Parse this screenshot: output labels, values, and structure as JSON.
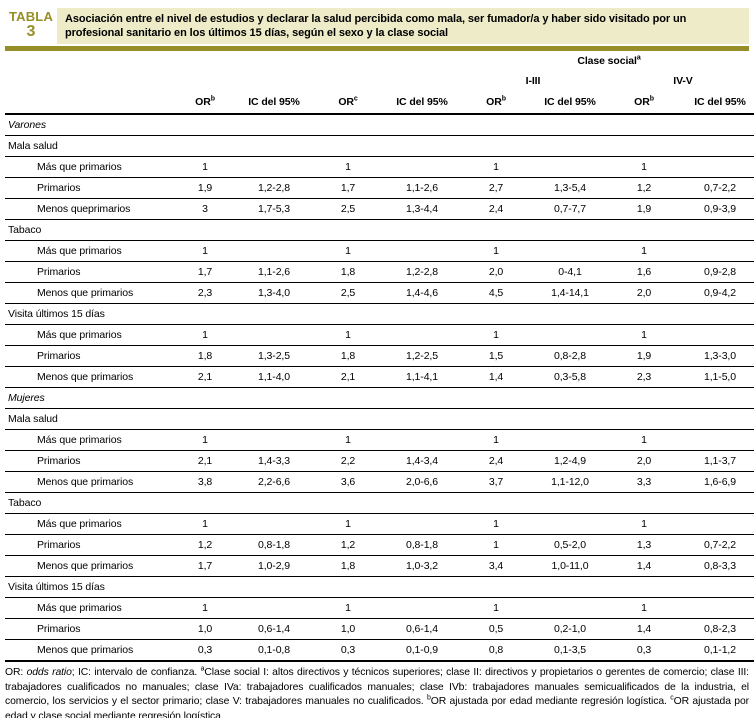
{
  "colors": {
    "olive": "#968f28",
    "cream": "#edebc8"
  },
  "header": {
    "badge_line1": "TABLA",
    "badge_line2": "3",
    "title": "Asociación entre el nivel de estudios y declarar la salud percibida como mala, ser fumador/a y haber sido visitado por un profesional sanitario en los últimos 15 días, según el sexo y la clase social"
  },
  "table": {
    "group_header": {
      "label": "Clase social",
      "sup": "a"
    },
    "subgroup_headers": [
      {
        "label": "I-III"
      },
      {
        "label": "IV-V"
      }
    ],
    "columns": [
      {
        "label": "OR",
        "sup": "b"
      },
      {
        "label": "IC del 95%",
        "sup": ""
      },
      {
        "label": "OR",
        "sup": "c"
      },
      {
        "label": "IC del 95%",
        "sup": ""
      },
      {
        "label": "OR",
        "sup": "b"
      },
      {
        "label": "IC del 95%",
        "sup": ""
      },
      {
        "label": "OR",
        "sup": "b"
      },
      {
        "label": "IC del 95%",
        "sup": ""
      }
    ],
    "rows": [
      {
        "type": "sex",
        "label": "Varones"
      },
      {
        "type": "section",
        "label": "Mala salud"
      },
      {
        "type": "data",
        "label": "Más que primarios",
        "values": [
          "1",
          "",
          "1",
          "",
          "1",
          "",
          "1",
          ""
        ]
      },
      {
        "type": "data",
        "label": "Primarios",
        "values": [
          "1,9",
          "1,2-2,8",
          "1,7",
          "1,1-2,6",
          "2,7",
          "1,3-5,4",
          "1,2",
          "0,7-2,2"
        ]
      },
      {
        "type": "data",
        "label": "Menos queprimarios",
        "values": [
          "3",
          "1,7-5,3",
          "2,5",
          "1,3-4,4",
          "2,4",
          "0,7-7,7",
          "1,9",
          "0,9-3,9"
        ]
      },
      {
        "type": "section",
        "label": "Tabaco"
      },
      {
        "type": "data",
        "label": "Más que primarios",
        "values": [
          "1",
          "",
          "1",
          "",
          "1",
          "",
          "1",
          ""
        ]
      },
      {
        "type": "data",
        "label": "Primarios",
        "values": [
          "1,7",
          "1,1-2,6",
          "1,8",
          "1,2-2,8",
          "2,0",
          "0-4,1",
          "1,6",
          "0,9-2,8"
        ]
      },
      {
        "type": "data",
        "label": "Menos que primarios",
        "values": [
          "2,3",
          "1,3-4,0",
          "2,5",
          "1,4-4,6",
          "4,5",
          "1,4-14,1",
          "2,0",
          "0,9-4,2"
        ]
      },
      {
        "type": "section",
        "label": "Visita últimos 15 días"
      },
      {
        "type": "data",
        "label": "Más que primarios",
        "values": [
          "1",
          "",
          "1",
          "",
          "1",
          "",
          "1",
          ""
        ]
      },
      {
        "type": "data",
        "label": "Primarios",
        "values": [
          "1,8",
          "1,3-2,5",
          "1,8",
          "1,2-2,5",
          "1,5",
          "0,8-2,8",
          "1,9",
          "1,3-3,0"
        ]
      },
      {
        "type": "data",
        "label": "Menos que primarios",
        "values": [
          "2,1",
          "1,1-4,0",
          "2,1",
          "1,1-4,1",
          "1,4",
          "0,3-5,8",
          "2,3",
          "1,1-5,0"
        ]
      },
      {
        "type": "sex",
        "label": "Mujeres"
      },
      {
        "type": "section",
        "label": "Mala salud"
      },
      {
        "type": "data",
        "label": "Más que primarios",
        "values": [
          "1",
          "",
          "1",
          "",
          "1",
          "",
          "1",
          ""
        ]
      },
      {
        "type": "data",
        "label": "Primarios",
        "values": [
          "2,1",
          "1,4-3,3",
          "2,2",
          "1,4-3,4",
          "2,4",
          "1,2-4,9",
          "2,0",
          "1,1-3,7"
        ]
      },
      {
        "type": "data",
        "label": "Menos que primarios",
        "values": [
          "3,8",
          "2,2-6,6",
          "3,6",
          "2,0-6,6",
          "3,7",
          "1,1-12,0",
          "3,3",
          "1,6-6,9"
        ]
      },
      {
        "type": "section",
        "label": "Tabaco"
      },
      {
        "type": "data",
        "label": "Más que primarios",
        "values": [
          "1",
          "",
          "1",
          "",
          "1",
          "",
          "1",
          ""
        ]
      },
      {
        "type": "data",
        "label": "Primarios",
        "values": [
          "1,2",
          "0,8-1,8",
          "1,2",
          "0,8-1,8",
          "1",
          "0,5-2,0",
          "1,3",
          "0,7-2,2"
        ]
      },
      {
        "type": "data",
        "label": "Menos que primarios",
        "values": [
          "1,7",
          "1,0-2,9",
          "1,8",
          "1,0-3,2",
          "3,4",
          "1,0-11,0",
          "1,4",
          "0,8-3,3"
        ]
      },
      {
        "type": "section",
        "label": "Visita últimos 15 días"
      },
      {
        "type": "data",
        "label": "Más que primarios",
        "values": [
          "1",
          "",
          "1",
          "",
          "1",
          "",
          "1",
          ""
        ]
      },
      {
        "type": "data",
        "label": "Primarios",
        "values": [
          "1,0",
          "0,6-1,4",
          "1,0",
          "0,6-1,4",
          "0,5",
          "0,2-1,0",
          "1,4",
          "0,8-2,3"
        ]
      },
      {
        "type": "data",
        "label": "Menos que primarios",
        "values": [
          "0,3",
          "0,1-0,8",
          "0,3",
          "0,1-0,9",
          "0,8",
          "0,1-3,5",
          "0,3",
          "0,1-1,2"
        ]
      }
    ]
  },
  "footnote": {
    "segments": [
      {
        "text": "OR: "
      },
      {
        "text": "odds ratio",
        "style": "italic"
      },
      {
        "text": "; IC: intervalo de confianza. "
      },
      {
        "text": "a",
        "style": "sup"
      },
      {
        "text": "Clase social I: altos directivos y técnicos superiores; clase II: directivos y propietarios o gerentes de comercio; clase III: trabajadores cualificados no manuales; clase IVa: trabajadores cualificados manuales; clase IVb: trabajadores manuales semicualificados de la industria, el comercio, los servicios y el sector primario; clase V: trabajadores manuales no cualificados. "
      },
      {
        "text": "b",
        "style": "sup"
      },
      {
        "text": "OR ajustada por edad mediante regresión logística. "
      },
      {
        "text": "c",
        "style": "sup"
      },
      {
        "text": "OR ajustada por edad y clase social mediante regresión logística."
      }
    ]
  }
}
